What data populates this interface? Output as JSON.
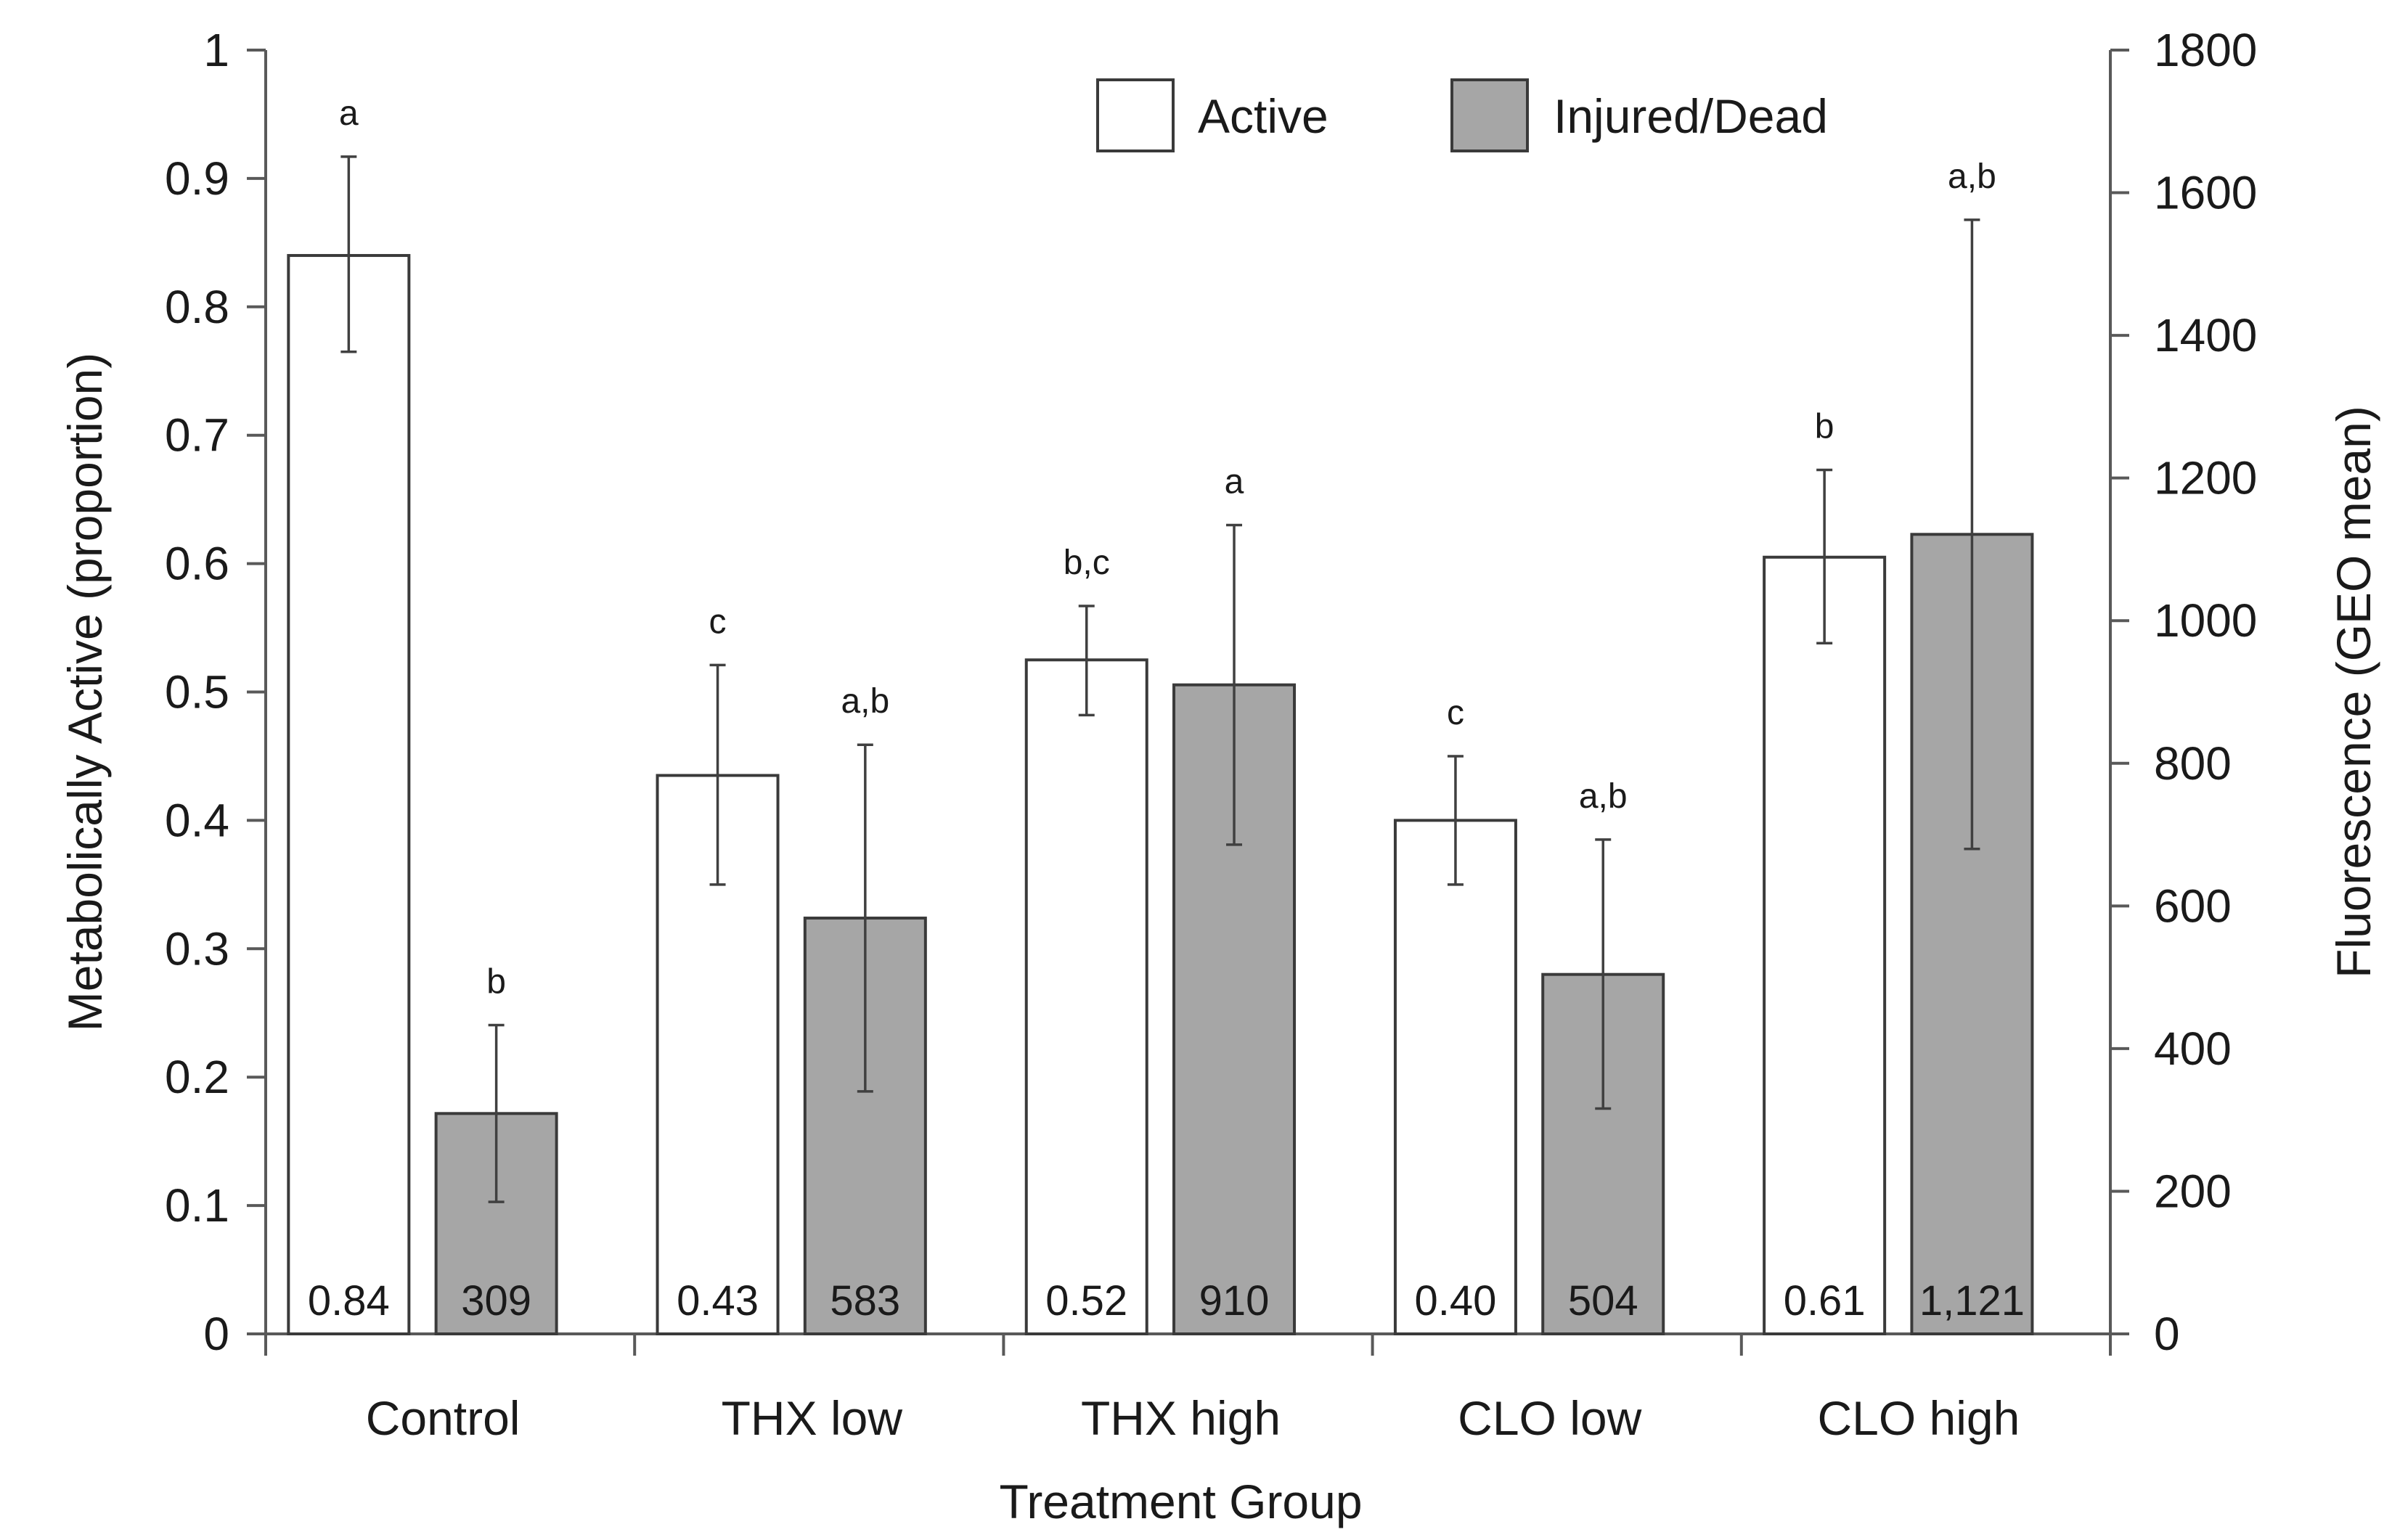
{
  "chart_data": {
    "type": "bar",
    "xlabel": "Treatment Group",
    "ylabel_left": "Metabolically Active (proportion)",
    "ylabel_right": "Fluorescence (GEO mean)",
    "ylim_left": [
      0,
      1
    ],
    "ylim_right": [
      0,
      1800
    ],
    "yticks_left": [
      "0",
      "0.1",
      "0.2",
      "0.3",
      "0.4",
      "0.5",
      "0.6",
      "0.7",
      "0.8",
      "0.9",
      "1"
    ],
    "yticks_right": [
      "0",
      "200",
      "400",
      "600",
      "800",
      "1000",
      "1200",
      "1400",
      "1600",
      "1800"
    ],
    "grid": false,
    "legend_position": "top-center",
    "categories": [
      "Control",
      "THX low",
      "THX high",
      "CLO low",
      "CLO high"
    ],
    "series": [
      {
        "name": "Active",
        "axis": "left",
        "color": "#ffffff",
        "values": [
          0.84,
          0.435,
          0.525,
          0.4,
          0.605
        ],
        "err_low": [
          0.765,
          0.35,
          0.482,
          0.35,
          0.538
        ],
        "err_high": [
          0.917,
          0.521,
          0.567,
          0.45,
          0.673
        ],
        "value_labels": [
          "0.84",
          "0.43",
          "0.52",
          "0.40",
          "0.61"
        ],
        "sig_letters": [
          "a",
          "c",
          "b,c",
          "c",
          "b"
        ]
      },
      {
        "name": "Injured/Dead",
        "axis": "right",
        "color": "#a6a6a6",
        "values": [
          309,
          583,
          910,
          504,
          1121
        ],
        "err_low": [
          185,
          340,
          686,
          316,
          680
        ],
        "err_high": [
          433,
          826,
          1134,
          693,
          1562
        ],
        "value_labels": [
          "309",
          "583",
          "910",
          "504",
          "1,121"
        ],
        "sig_letters": [
          "b",
          "a,b",
          "a",
          "a,b",
          "a,b"
        ]
      }
    ]
  }
}
